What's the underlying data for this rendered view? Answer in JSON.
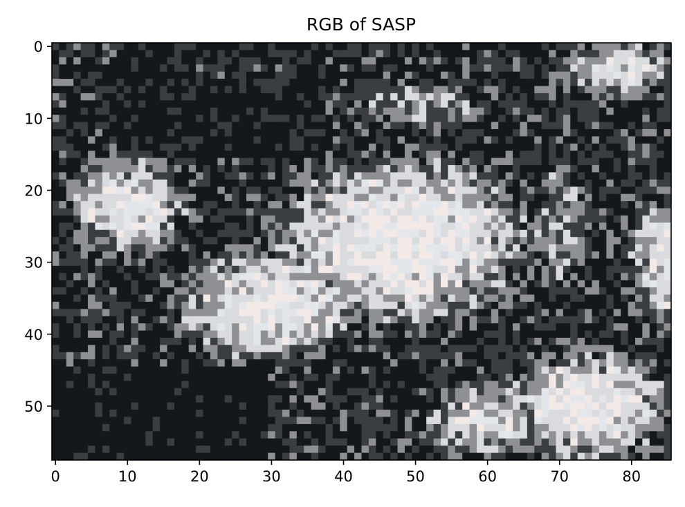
{
  "chart_data": {
    "type": "heatmap",
    "subtype": "rgb-image",
    "title": "RGB of SASP",
    "xlabel": "",
    "ylabel": "",
    "image_shape": [
      58,
      86
    ],
    "xlim": [
      -0.5,
      85.5
    ],
    "ylim": [
      57.5,
      -0.5
    ],
    "xticks": [
      0,
      10,
      20,
      30,
      40,
      50,
      60,
      70,
      80
    ],
    "xtick_labels": [
      "0",
      "10",
      "20",
      "30",
      "40",
      "50",
      "60",
      "70",
      "80"
    ],
    "yticks": [
      0,
      10,
      20,
      30,
      40,
      50
    ],
    "ytick_labels": [
      "0",
      "10",
      "20",
      "30",
      "40",
      "50"
    ],
    "palette": {
      "dark": "#14171c",
      "darkgray": "#3a3d42",
      "gray": "#8f9094",
      "light": "#d9dbdf",
      "snow": "#e3e7ec",
      "warmlight": "#f3e9e6"
    }
  }
}
